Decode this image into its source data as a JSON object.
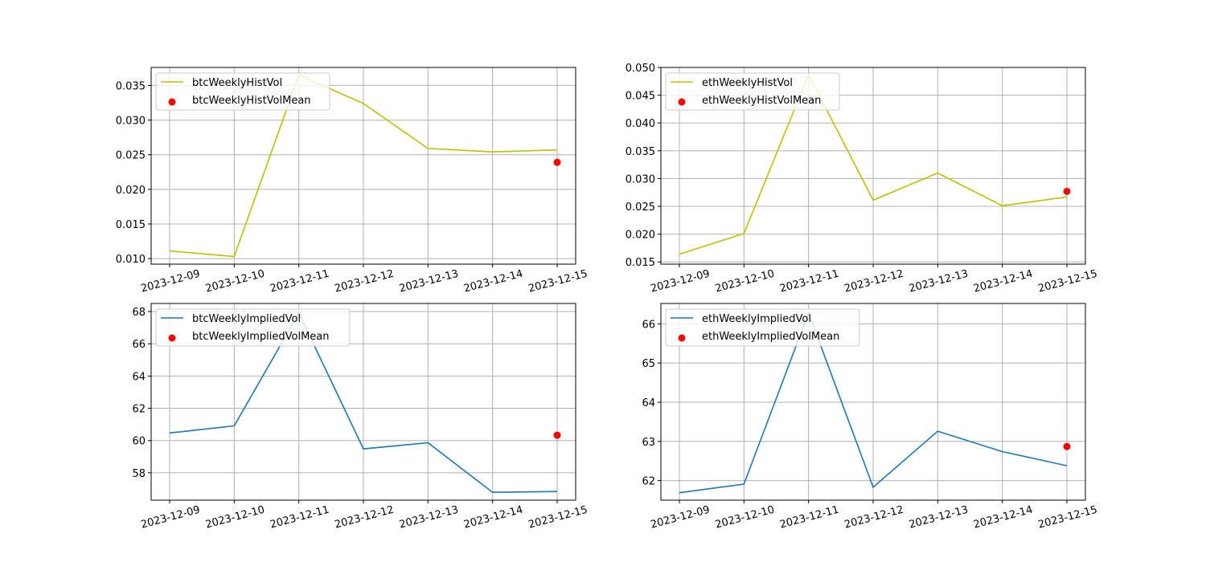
{
  "chart_data": [
    {
      "type": "line",
      "x": [
        "2023-12-09",
        "2023-12-10",
        "2023-12-11",
        "2023-12-12",
        "2023-12-13",
        "2023-12-14",
        "2023-12-15"
      ],
      "ylim": [
        0.0092,
        0.0376
      ],
      "yticks": [
        "0.010",
        "0.015",
        "0.020",
        "0.025",
        "0.030",
        "0.035"
      ],
      "grid": true,
      "legend_position": "upper left",
      "series": [
        {
          "name": "btcWeeklyHistVol",
          "kind": "line",
          "color": "#bfbf00",
          "values": [
            0.0111,
            0.0103,
            0.0365,
            0.0324,
            0.0259,
            0.0254,
            0.0257
          ]
        },
        {
          "name": "btcWeeklyHistVolMean",
          "kind": "scatter",
          "color": "#ff0000",
          "points": [
            {
              "x": "2023-12-15",
              "y": 0.0239
            }
          ]
        }
      ]
    },
    {
      "type": "line",
      "x": [
        "2023-12-09",
        "2023-12-10",
        "2023-12-11",
        "2023-12-12",
        "2023-12-13",
        "2023-12-14",
        "2023-12-15"
      ],
      "ylim": [
        0.0146,
        0.05
      ],
      "yticks": [
        "0.015",
        "0.020",
        "0.025",
        "0.030",
        "0.035",
        "0.040",
        "0.045",
        "0.050"
      ],
      "grid": true,
      "legend_position": "upper left",
      "series": [
        {
          "name": "ethWeeklyHistVol",
          "kind": "line",
          "color": "#bfbf00",
          "values": [
            0.0164,
            0.0201,
            0.0487,
            0.0261,
            0.031,
            0.0251,
            0.0267
          ]
        },
        {
          "name": "ethWeeklyHistVolMean",
          "kind": "scatter",
          "color": "#ff0000",
          "points": [
            {
              "x": "2023-12-15",
              "y": 0.0277
            }
          ]
        }
      ]
    },
    {
      "type": "line",
      "x": [
        "2023-12-09",
        "2023-12-10",
        "2023-12-11",
        "2023-12-12",
        "2023-12-13",
        "2023-12-14",
        "2023-12-15"
      ],
      "ylim": [
        56.3,
        68.5
      ],
      "yticks": [
        "58",
        "60",
        "62",
        "64",
        "66",
        "68"
      ],
      "grid": true,
      "legend_position": "upper left",
      "series": [
        {
          "name": "btcWeeklyImpliedVol",
          "kind": "line",
          "color": "#1f77b4",
          "values": [
            60.47,
            60.91,
            67.9,
            59.48,
            59.86,
            56.79,
            56.84
          ]
        },
        {
          "name": "btcWeeklyImpliedVolMean",
          "kind": "scatter",
          "color": "#ff0000",
          "points": [
            {
              "x": "2023-12-15",
              "y": 60.33
            }
          ]
        }
      ]
    },
    {
      "type": "line",
      "x": [
        "2023-12-09",
        "2023-12-10",
        "2023-12-11",
        "2023-12-12",
        "2023-12-13",
        "2023-12-14",
        "2023-12-15"
      ],
      "ylim": [
        61.5,
        66.52
      ],
      "yticks": [
        "62",
        "63",
        "64",
        "65",
        "66"
      ],
      "grid": true,
      "legend_position": "upper left",
      "series": [
        {
          "name": "ethWeeklyImpliedVol",
          "kind": "line",
          "color": "#1f77b4",
          "values": [
            61.69,
            61.91,
            66.28,
            61.83,
            63.26,
            62.74,
            62.38
          ]
        },
        {
          "name": "ethWeeklyImpliedVolMean",
          "kind": "scatter",
          "color": "#ff0000",
          "points": [
            {
              "x": "2023-12-15",
              "y": 62.87
            }
          ]
        }
      ]
    }
  ]
}
